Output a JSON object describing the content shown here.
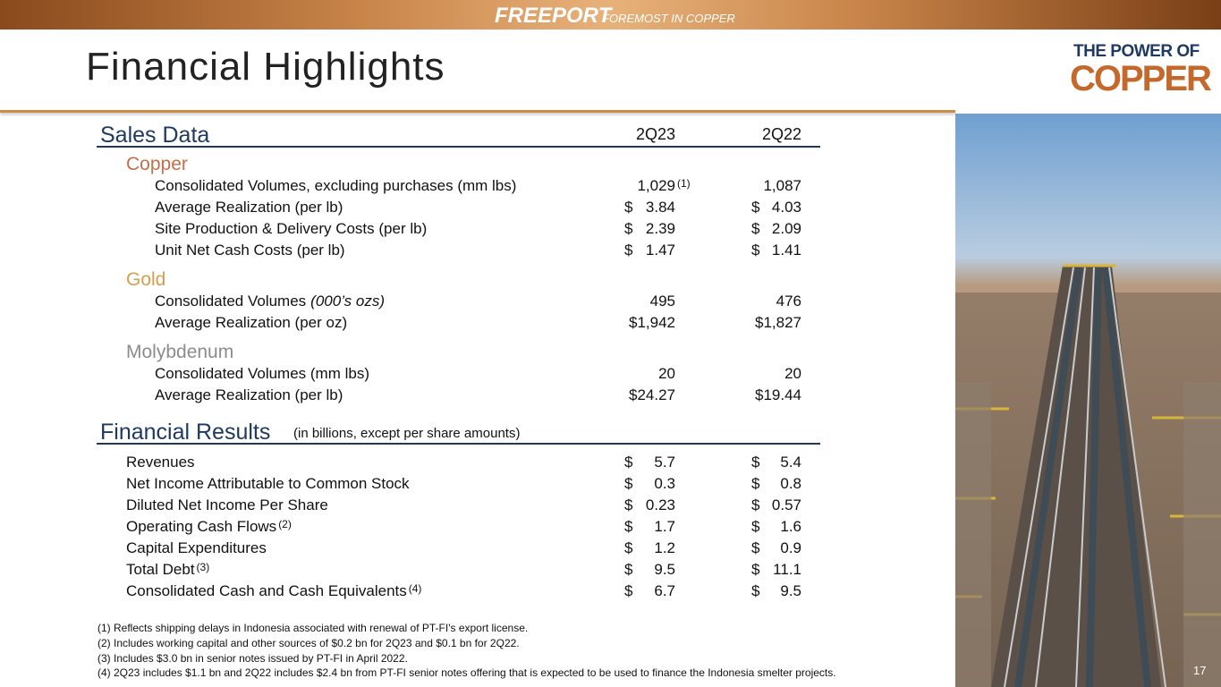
{
  "header": {
    "brand": "FREEPORT",
    "tagline": "FOREMOST IN COPPER",
    "logo_line1": "THE POWER OF",
    "logo_line2": "COPPER"
  },
  "title": "Financial Highlights",
  "sales": {
    "heading": "Sales Data",
    "columns": [
      "2Q23",
      "2Q22"
    ],
    "groups": [
      {
        "name": "Copper",
        "rows": [
          {
            "label": "Consolidated Volumes, excluding purchases (mm lbs)",
            "values": [
              [
                "1,029"
              ],
              [
                "1,087"
              ]
            ],
            "value_note": "(1)"
          },
          {
            "label": "Average Realization (per lb)",
            "values": [
              [
                "$",
                "3.84"
              ],
              [
                "$",
                "4.03"
              ]
            ]
          },
          {
            "label": "Site Production & Delivery Costs (per lb)",
            "values": [
              [
                "$",
                "2.39"
              ],
              [
                "$",
                "2.09"
              ]
            ]
          },
          {
            "label": "Unit Net Cash Costs (per lb)",
            "values": [
              [
                "$",
                "1.47"
              ],
              [
                "$",
                "1.41"
              ]
            ]
          }
        ]
      },
      {
        "name": "Gold",
        "rows": [
          {
            "label": "Consolidated Volumes",
            "label_italic": "(000’s ozs)",
            "values": [
              [
                "495"
              ],
              [
                "476"
              ]
            ]
          },
          {
            "label": "Average Realization (per oz)",
            "values": [
              [
                "$1,942"
              ],
              [
                "$1,827"
              ]
            ]
          }
        ]
      },
      {
        "name": "Molybdenum",
        "rows": [
          {
            "label": "Consolidated Volumes (mm lbs)",
            "values": [
              [
                "20"
              ],
              [
                "20"
              ]
            ]
          },
          {
            "label": "Average Realization (per lb)",
            "values": [
              [
                "$24.27"
              ],
              [
                "$19.44"
              ]
            ]
          }
        ]
      }
    ]
  },
  "financial": {
    "heading": "Financial Results",
    "subheading": "(in billions, except per share amounts)",
    "rows": [
      {
        "label": "Revenues",
        "values": [
          [
            "$",
            "5.7"
          ],
          [
            "$",
            "5.4"
          ]
        ]
      },
      {
        "label": "Net Income Attributable to Common Stock",
        "values": [
          [
            "$",
            "0.3"
          ],
          [
            "$",
            "0.8"
          ]
        ]
      },
      {
        "label": "Diluted Net Income Per Share",
        "values": [
          [
            "$",
            "0.23"
          ],
          [
            "$",
            "0.57"
          ]
        ]
      },
      {
        "label": "Operating Cash Flows",
        "note": "(2)",
        "values": [
          [
            "$",
            "1.7"
          ],
          [
            "$",
            "1.6"
          ]
        ]
      },
      {
        "label": "Capital Expenditures",
        "values": [
          [
            "$",
            "1.2"
          ],
          [
            "$",
            "0.9"
          ]
        ]
      },
      {
        "label": "Total Debt",
        "note": "(3)",
        "values": [
          [
            "$",
            "9.5"
          ],
          [
            "$",
            "11.1"
          ]
        ]
      },
      {
        "label": "Consolidated Cash and Cash Equivalents",
        "note": "(4)",
        "values": [
          [
            "$",
            "6.7"
          ],
          [
            "$",
            "9.5"
          ]
        ]
      }
    ]
  },
  "footnotes": [
    "(1) Reflects shipping delays in Indonesia associated with renewal of PT-FI's export license.",
    "(2) Includes working capital and other sources of $0.2 bn for 2Q23 and $0.1 bn for 2Q22.",
    "(3) Includes $3.0 bn in senior notes issued by PT-FI in April 2022.",
    "(4) 2Q23 includes $1.1 bn and 2Q22 includes $2.4 bn from PT-FI senior notes offering that is expected to be used to finance the Indonesia smelter projects."
  ],
  "page_number": "17"
}
